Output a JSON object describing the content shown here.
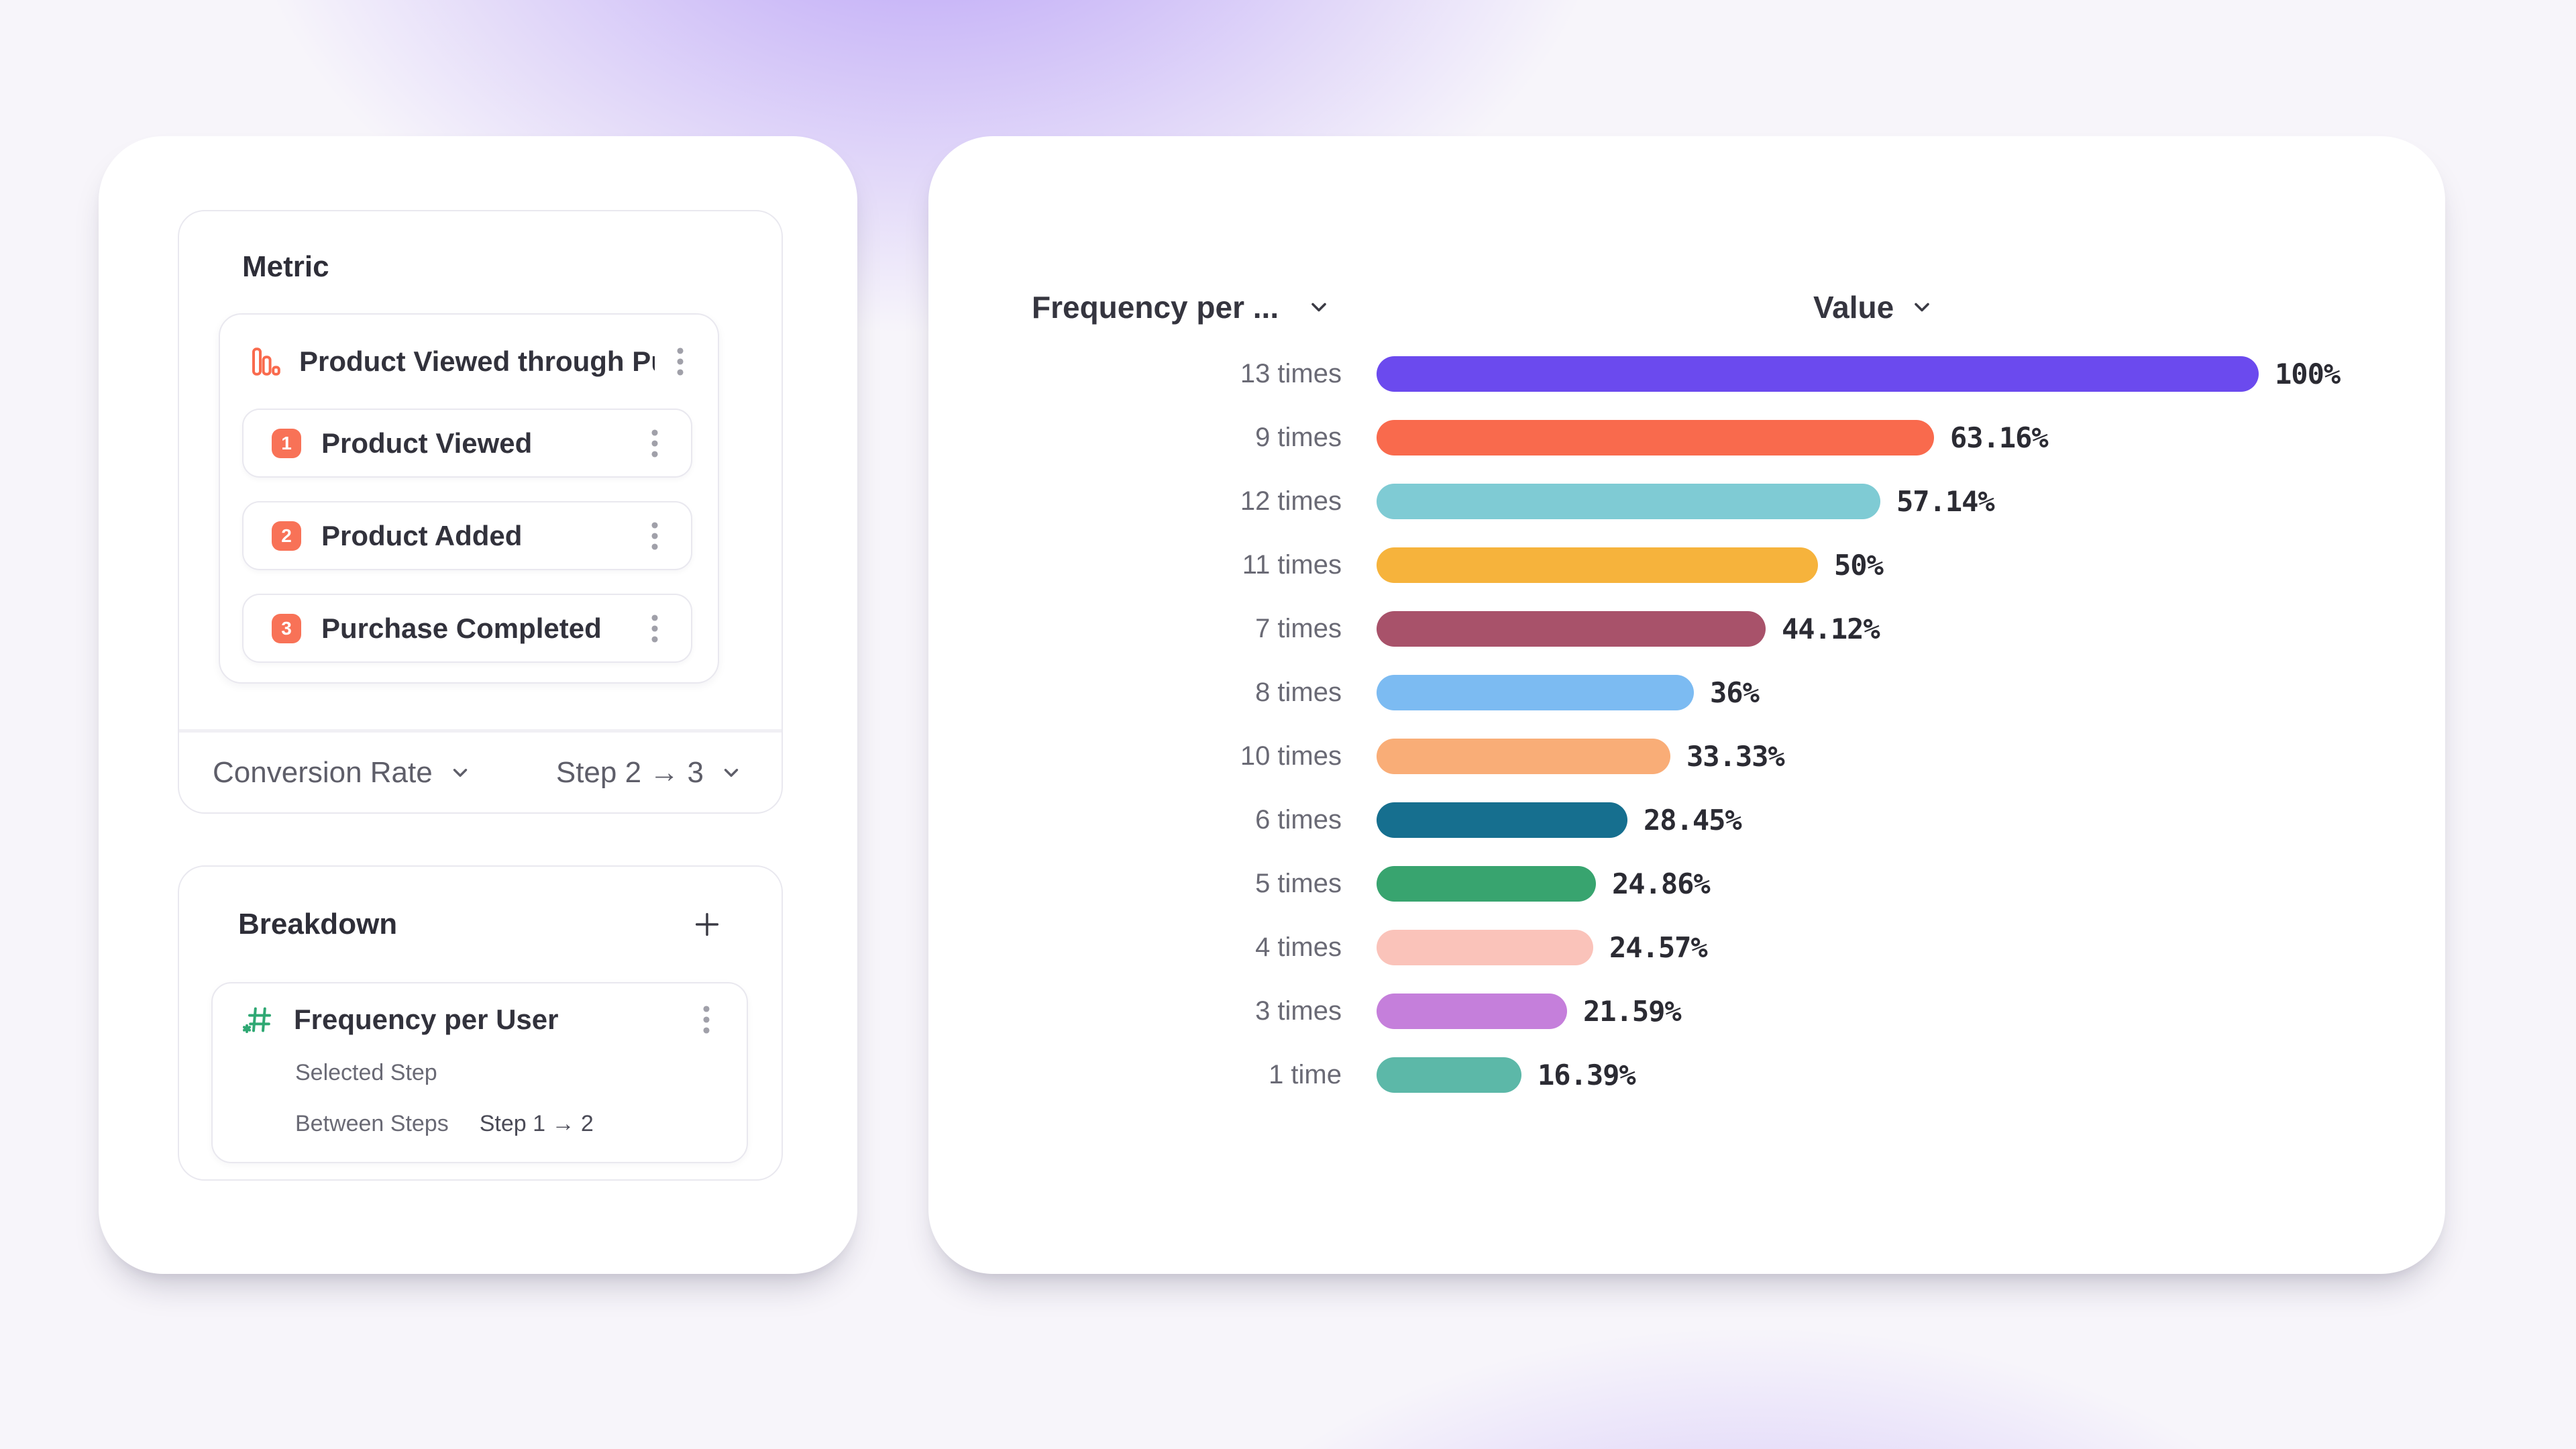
{
  "page": {
    "background_accent": "#8B63F5",
    "card_background": "#FFFFFF",
    "border_color": "#E9E8EF"
  },
  "left_panel": {
    "metric": {
      "title": "Metric",
      "funnel": {
        "icon": "bar-chart-icon",
        "icon_color": "#F96A4D",
        "title": "Product Viewed through Purch...",
        "badge_color": "#F87257",
        "steps": [
          {
            "number": "1",
            "label": "Product Viewed"
          },
          {
            "number": "2",
            "label": "Product Added"
          },
          {
            "number": "3",
            "label": "Purchase Completed"
          }
        ]
      },
      "footer": {
        "conversion_label": "Conversion Rate",
        "step_range_label": "Step 2 → 3"
      }
    },
    "breakdown": {
      "title": "Breakdown",
      "item": {
        "icon": "numeric-hash-icon",
        "icon_color": "#2FA873",
        "title": "Frequency per User",
        "selected_step_label": "Selected Step",
        "between_steps_label": "Between Steps",
        "between_steps_value": "Step 1 → 2"
      }
    }
  },
  "chart": {
    "frequency_header": "Frequency per ...",
    "value_header": "Value"
  },
  "chart_data": {
    "type": "bar",
    "orientation": "horizontal",
    "column_headers": [
      "Frequency per ...",
      "Value"
    ],
    "categories": [
      "13 times",
      "9 times",
      "12 times",
      "11 times",
      "7 times",
      "8 times",
      "10 times",
      "6 times",
      "5 times",
      "4 times",
      "3 times",
      "1 time"
    ],
    "values": [
      100,
      63.16,
      57.14,
      50,
      44.12,
      36,
      33.33,
      28.45,
      24.86,
      24.57,
      21.59,
      16.39
    ],
    "value_labels": [
      "100%",
      "63.16%",
      "57.14%",
      "50%",
      "44.12%",
      "36%",
      "33.33%",
      "28.45%",
      "24.86%",
      "24.57%",
      "21.59%",
      "16.39%"
    ],
    "colors": [
      "#6B4AEE",
      "#F96A4D",
      "#7FCBD4",
      "#F6B33C",
      "#A8526A",
      "#7CBBF2",
      "#F9AD77",
      "#166F8F",
      "#38A46F",
      "#FAC3BA",
      "#C57FDB",
      "#5CB8A8"
    ],
    "xlim": [
      0,
      100
    ],
    "unit": "%",
    "grid": false,
    "legend": false
  }
}
